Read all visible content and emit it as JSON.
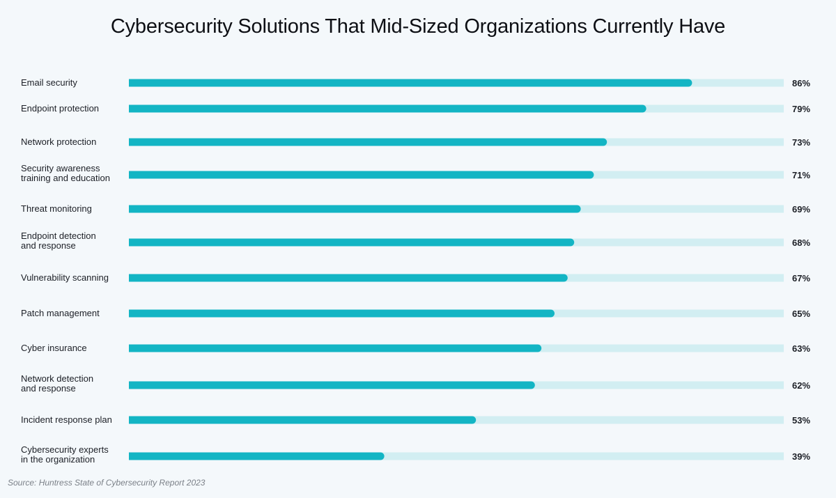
{
  "chart_data": {
    "type": "bar",
    "orientation": "horizontal",
    "title": "Cybersecurity Solutions That Mid-Sized Organizations Currently Have",
    "categories": [
      [
        "Email security"
      ],
      [
        "Endpoint protection"
      ],
      [
        "Network protection"
      ],
      [
        "Security awareness",
        "training and education"
      ],
      [
        "Threat monitoring"
      ],
      [
        "Endpoint detection",
        "and response"
      ],
      [
        "Vulnerability scanning"
      ],
      [
        "Patch management"
      ],
      [
        "Cyber insurance"
      ],
      [
        "Network detection",
        "and response"
      ],
      [
        "Incident response plan"
      ],
      [
        "Cybersecurity experts",
        "in the organization"
      ]
    ],
    "values": [
      86,
      79,
      73,
      71,
      69,
      68,
      67,
      65,
      63,
      62,
      53,
      39
    ],
    "value_labels": [
      "86%",
      "79%",
      "73%",
      "71%",
      "69%",
      "68%",
      "67%",
      "65%",
      "63%",
      "62%",
      "53%",
      "39%"
    ],
    "xlim": [
      0,
      100
    ],
    "grid": false,
    "legend": "none",
    "colors": {
      "bar": "#13b5c4",
      "track": "#d2eef2"
    }
  },
  "source": "Source: Huntress State of Cybersecurity Report 2023"
}
